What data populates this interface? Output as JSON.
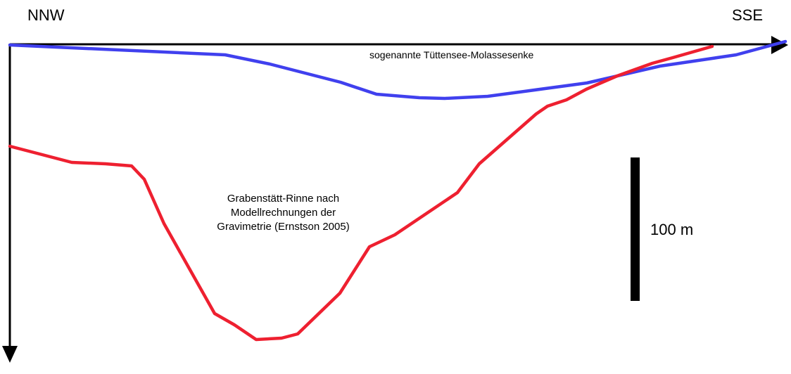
{
  "directions": {
    "left": "NNW",
    "right": "SSE"
  },
  "curves": {
    "blue": {
      "label": "sogenannte Tüttensee-Molassesenke",
      "color": "#4040ee"
    },
    "red": {
      "label_lines": [
        "Grabenstätt-Rinne nach",
        "Modellrechnungen der",
        "Gravimetrie (Ernstson 2005)"
      ],
      "color": "#ee2030"
    }
  },
  "scale_bar": {
    "label": "100 m",
    "represents_m": 100,
    "color": "#000000"
  },
  "axes": {
    "color": "#000000"
  }
}
